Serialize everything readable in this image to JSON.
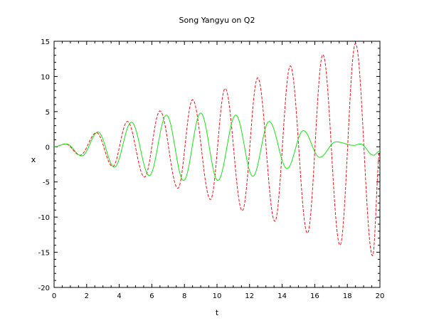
{
  "chart_data": {
    "type": "line",
    "title": "Song Yangyu on Q2",
    "xlabel": "t",
    "ylabel": "x",
    "xlim": [
      0,
      20
    ],
    "ylim": [
      -20,
      15
    ],
    "xticks": [
      0,
      2,
      4,
      6,
      8,
      10,
      12,
      14,
      16,
      18,
      20
    ],
    "yticks": [
      -20,
      -15,
      -10,
      -5,
      0,
      5,
      10,
      15
    ],
    "grid": false,
    "legend": "none",
    "series": [
      {
        "color": "#e8141e",
        "style": "dashed",
        "points": [
          [
            0.0,
            0.0
          ],
          [
            0.7,
            0.4
          ],
          [
            1.6,
            -1.2
          ],
          [
            2.6,
            2.0
          ],
          [
            3.6,
            -2.8
          ],
          [
            4.5,
            3.6
          ],
          [
            5.55,
            -4.3
          ],
          [
            6.5,
            5.1
          ],
          [
            7.6,
            -5.9
          ],
          [
            8.5,
            6.7
          ],
          [
            9.6,
            -7.5
          ],
          [
            10.5,
            8.3
          ],
          [
            11.55,
            -9.1
          ],
          [
            12.5,
            9.8
          ],
          [
            13.55,
            -10.6
          ],
          [
            14.5,
            11.5
          ],
          [
            15.55,
            -12.3
          ],
          [
            16.5,
            13.1
          ],
          [
            17.55,
            -14.0
          ],
          [
            18.5,
            14.7
          ],
          [
            19.55,
            -15.5
          ],
          [
            20.0,
            -0.5
          ]
        ]
      },
      {
        "color": "#18e018",
        "style": "solid",
        "points": [
          [
            0.0,
            0.0
          ],
          [
            0.75,
            0.4
          ],
          [
            1.7,
            -1.3
          ],
          [
            2.7,
            2.1
          ],
          [
            3.7,
            -2.9
          ],
          [
            4.75,
            3.5
          ],
          [
            5.85,
            -4.1
          ],
          [
            6.9,
            4.5
          ],
          [
            7.95,
            -4.8
          ],
          [
            9.0,
            4.8
          ],
          [
            10.05,
            -4.8
          ],
          [
            11.15,
            4.5
          ],
          [
            12.2,
            -4.2
          ],
          [
            13.2,
            3.6
          ],
          [
            14.3,
            -3.1
          ],
          [
            15.3,
            2.3
          ],
          [
            16.3,
            -1.5
          ],
          [
            17.3,
            0.7
          ],
          [
            18.4,
            0.2
          ],
          [
            18.8,
            0.4
          ],
          [
            19.6,
            -1.2
          ],
          [
            20.0,
            -0.6
          ]
        ]
      }
    ]
  }
}
